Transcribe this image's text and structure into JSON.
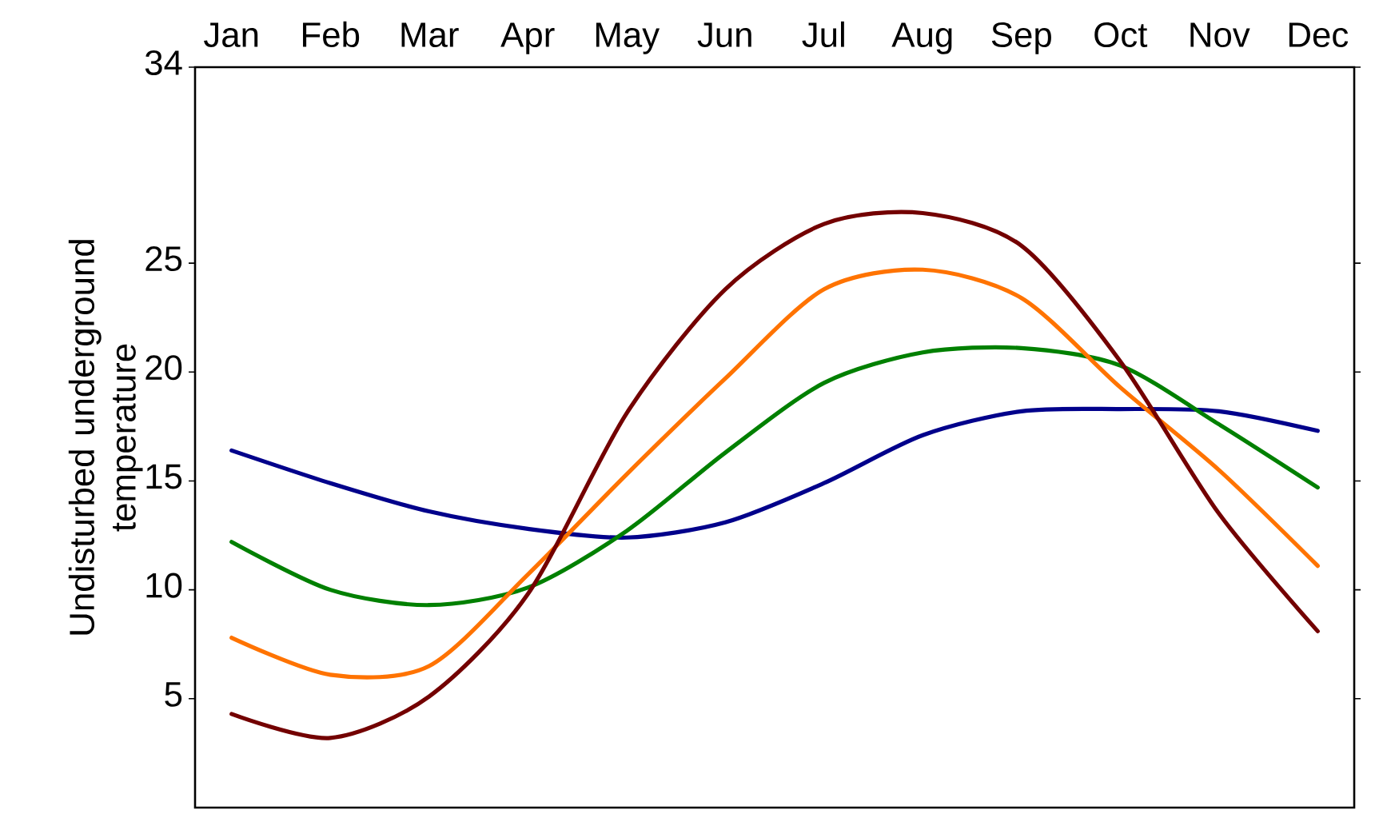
{
  "chart_data": {
    "type": "line",
    "ylabel": "Undisturbed underground temperature",
    "categories": [
      "Jan",
      "Feb",
      "Mar",
      "Apr",
      "May",
      "Jun",
      "Jul",
      "Aug",
      "Sep",
      "Oct",
      "Nov",
      "Dec"
    ],
    "ylim": [
      0,
      34
    ],
    "yticks": [
      5,
      10,
      15,
      20,
      25,
      34
    ],
    "grid": false,
    "marker": "none",
    "line_style": "solid",
    "series": [
      {
        "color": "#00008b",
        "values": [
          16.4,
          14.9,
          13.6,
          12.8,
          12.4,
          13.1,
          14.9,
          17.1,
          18.2,
          18.3,
          18.2,
          17.3
        ]
      },
      {
        "color": "#008000",
        "values": [
          12.2,
          10.0,
          9.3,
          10.1,
          12.7,
          16.3,
          19.5,
          20.9,
          21.1,
          20.3,
          17.6,
          14.7
        ]
      },
      {
        "color": "#ff7300",
        "values": [
          7.8,
          6.1,
          6.5,
          10.7,
          15.3,
          19.7,
          23.8,
          24.7,
          23.4,
          19.3,
          15.5,
          11.1
        ]
      },
      {
        "color": "#730000",
        "values": [
          4.3,
          3.2,
          5.1,
          9.8,
          18.1,
          23.8,
          26.8,
          27.3,
          25.8,
          20.5,
          13.5,
          8.1
        ]
      }
    ]
  }
}
